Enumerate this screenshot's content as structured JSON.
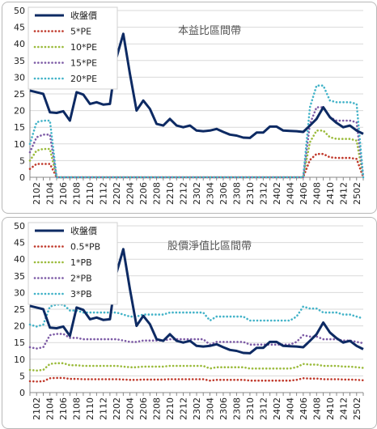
{
  "colors": {
    "price": "#0d2a63",
    "s1": "#c0392b",
    "s2": "#9bbb3c",
    "s3": "#7d5ba6",
    "s4": "#43b3c8",
    "grid": "#d9d9d9"
  },
  "chart_data": [
    {
      "type": "line",
      "title": "本益比區間帶",
      "ylim": [
        0,
        50
      ],
      "yticks": [
        0,
        5,
        10,
        15,
        20,
        25,
        30,
        35,
        40,
        45,
        50
      ],
      "xtick_labels": [
        "2102",
        "2104",
        "2106",
        "2108",
        "2110",
        "2112",
        "2202",
        "2204",
        "2206",
        "2208",
        "2210",
        "2212",
        "2302",
        "2304",
        "2306",
        "2308",
        "2310",
        "2312",
        "2402",
        "2404",
        "2406",
        "2408",
        "2410",
        "2412",
        "2502"
      ],
      "x": [
        "2101",
        "2102",
        "2103",
        "2104",
        "2105",
        "2106",
        "2107",
        "2108",
        "2109",
        "2110",
        "2111",
        "2112",
        "2201",
        "2202",
        "2203",
        "2204",
        "2205",
        "2206",
        "2207",
        "2208",
        "2209",
        "2210",
        "2211",
        "2212",
        "2301",
        "2302",
        "2303",
        "2304",
        "2305",
        "2306",
        "2307",
        "2308",
        "2309",
        "2310",
        "2311",
        "2312",
        "2401",
        "2402",
        "2403",
        "2404",
        "2405",
        "2406",
        "2407",
        "2408",
        "2409",
        "2410",
        "2411",
        "2412",
        "2501",
        "2502",
        "2503"
      ],
      "series": [
        {
          "name": "收盤價",
          "values": [
            26,
            25.5,
            25,
            19.5,
            19.3,
            19.8,
            17,
            25.5,
            24.8,
            22,
            22.5,
            21.8,
            22,
            36,
            43,
            31,
            20,
            23,
            20.5,
            16,
            15.5,
            17.5,
            15.5,
            15,
            15.5,
            14,
            13.8,
            14,
            14.5,
            13.6,
            12.8,
            12.5,
            11.9,
            11.8,
            13.4,
            13.4,
            15.2,
            15.2,
            14,
            13.9,
            13.8,
            13.6,
            15.5,
            17.5,
            21,
            18,
            16.3,
            15,
            15.5,
            14,
            13
          ]
        },
        {
          "name": "5*PE",
          "values": [
            2.5,
            4,
            4,
            4,
            0,
            0,
            0,
            0,
            0,
            0,
            0,
            0,
            0,
            0,
            0,
            0,
            0,
            0,
            0,
            0,
            0,
            0,
            0,
            0,
            0,
            0,
            0,
            0,
            0,
            0,
            0,
            0,
            0,
            0,
            0,
            0,
            0,
            0,
            0,
            0,
            0,
            0,
            5.2,
            7,
            7,
            6,
            5.8,
            5.8,
            5.8,
            5.5,
            0
          ]
        },
        {
          "name": "10*PE",
          "values": [
            5,
            8,
            8.5,
            8.5,
            0,
            0,
            0,
            0,
            0,
            0,
            0,
            0,
            0,
            0,
            0,
            0,
            0,
            0,
            0,
            0,
            0,
            0,
            0,
            0,
            0,
            0,
            0,
            0,
            0,
            0,
            0,
            0,
            0,
            0,
            0,
            0,
            0,
            0,
            0,
            0,
            0,
            0,
            10.5,
            14,
            14,
            12,
            11.5,
            11.5,
            11.5,
            11,
            0
          ]
        },
        {
          "name": "15*PE",
          "values": [
            7.5,
            12,
            12.8,
            12.8,
            0,
            0,
            0,
            0,
            0,
            0,
            0,
            0,
            0,
            0,
            0,
            0,
            0,
            0,
            0,
            0,
            0,
            0,
            0,
            0,
            0,
            0,
            0,
            0,
            0,
            0,
            0,
            0,
            0,
            0,
            0,
            0,
            0,
            0,
            0,
            0,
            0,
            0,
            16,
            21,
            21,
            18,
            17,
            17,
            17,
            16.5,
            0
          ]
        },
        {
          "name": "20*PE",
          "values": [
            10,
            16.5,
            17,
            17,
            0,
            0,
            0,
            0,
            0,
            0,
            0,
            0,
            0,
            0,
            0,
            0,
            0,
            0,
            0,
            0,
            0,
            0,
            0,
            0,
            0,
            0,
            0,
            0,
            0,
            0,
            0,
            0,
            0,
            0,
            0,
            0,
            0,
            0,
            0,
            0,
            0,
            0,
            21,
            27.5,
            27.5,
            23,
            22.5,
            22.5,
            22.5,
            22,
            0
          ]
        }
      ],
      "legend": "top-left"
    },
    {
      "type": "line",
      "title": "股價淨值比區間帶",
      "ylim": [
        0,
        50
      ],
      "yticks": [
        0,
        5,
        10,
        15,
        20,
        25,
        30,
        35,
        40,
        45,
        50
      ],
      "xtick_labels": [
        "2102",
        "2104",
        "2106",
        "2108",
        "2110",
        "2112",
        "2202",
        "2204",
        "2206",
        "2208",
        "2210",
        "2212",
        "2302",
        "2304",
        "2306",
        "2308",
        "2310",
        "2312",
        "2402",
        "2404",
        "2406",
        "2408",
        "2410",
        "2412",
        "2502"
      ],
      "x": [
        "2101",
        "2102",
        "2103",
        "2104",
        "2105",
        "2106",
        "2107",
        "2108",
        "2109",
        "2110",
        "2111",
        "2112",
        "2201",
        "2202",
        "2203",
        "2204",
        "2205",
        "2206",
        "2207",
        "2208",
        "2209",
        "2210",
        "2211",
        "2212",
        "2301",
        "2302",
        "2303",
        "2304",
        "2305",
        "2306",
        "2307",
        "2308",
        "2309",
        "2310",
        "2311",
        "2312",
        "2401",
        "2402",
        "2403",
        "2404",
        "2405",
        "2406",
        "2407",
        "2408",
        "2409",
        "2410",
        "2411",
        "2412",
        "2501",
        "2502",
        "2503"
      ],
      "series": [
        {
          "name": "收盤價",
          "values": [
            26,
            25.5,
            25,
            19.5,
            19.3,
            19.8,
            17,
            25.5,
            24.8,
            22,
            22.5,
            21.8,
            22,
            36,
            43,
            31,
            20,
            23,
            20.5,
            16,
            15.5,
            17.5,
            15.5,
            15,
            15.5,
            14,
            13.8,
            14,
            14.5,
            13.6,
            12.8,
            12.5,
            11.9,
            11.8,
            13.4,
            13.4,
            15.2,
            15.2,
            14,
            13.9,
            13.8,
            13.6,
            15.5,
            17.5,
            21,
            18,
            16.3,
            15,
            15.5,
            14,
            13
          ]
        },
        {
          "name": "0.5*PB",
          "values": [
            3.4,
            3.3,
            3.4,
            4.3,
            4.4,
            4.4,
            4.1,
            4.1,
            4.0,
            4.0,
            4.0,
            4.0,
            4.0,
            4.0,
            3.9,
            3.8,
            3.8,
            3.9,
            3.9,
            3.9,
            3.9,
            4.0,
            4.0,
            4.0,
            4.0,
            4.0,
            4.0,
            3.6,
            3.8,
            3.8,
            3.8,
            3.8,
            3.8,
            3.6,
            3.6,
            3.6,
            3.6,
            3.6,
            3.6,
            3.6,
            3.8,
            4.3,
            4.2,
            4.2,
            4.0,
            4.0,
            4.0,
            3.9,
            3.9,
            3.8,
            3.7
          ]
        },
        {
          "name": "1*PB",
          "values": [
            6.8,
            6.6,
            6.8,
            8.6,
            8.8,
            8.8,
            8.2,
            8.2,
            8.0,
            8.0,
            8.0,
            8.0,
            8.0,
            8.0,
            7.8,
            7.6,
            7.6,
            7.8,
            7.8,
            7.8,
            7.8,
            8.0,
            8.0,
            8.0,
            8.0,
            8.0,
            8.0,
            7.2,
            7.6,
            7.6,
            7.6,
            7.6,
            7.6,
            7.2,
            7.2,
            7.2,
            7.2,
            7.2,
            7.2,
            7.2,
            7.6,
            8.6,
            8.4,
            8.4,
            8.0,
            8.0,
            8.0,
            7.8,
            7.8,
            7.6,
            7.4
          ]
        },
        {
          "name": "2*PB",
          "values": [
            13.6,
            13.2,
            13.6,
            17.2,
            17.6,
            17.6,
            16.4,
            16.4,
            16.0,
            16.0,
            16.0,
            16.0,
            16.0,
            16.0,
            15.6,
            15.2,
            15.2,
            15.6,
            15.6,
            15.6,
            15.6,
            16.0,
            16.0,
            16.0,
            16.0,
            16.0,
            16.0,
            14.4,
            15.2,
            15.2,
            15.2,
            15.2,
            15.2,
            14.4,
            14.4,
            14.4,
            14.4,
            14.4,
            14.4,
            14.4,
            15.2,
            17.2,
            16.8,
            16.8,
            16.0,
            16.0,
            16.0,
            15.6,
            15.6,
            15.2,
            14.8
          ]
        },
        {
          "name": "3*PB",
          "values": [
            20.4,
            19.8,
            20.4,
            25.8,
            26.4,
            26.4,
            24.6,
            24.6,
            24.0,
            24.0,
            24.0,
            24.0,
            24.0,
            24.0,
            23.4,
            22.8,
            22.8,
            23.4,
            23.4,
            23.4,
            23.4,
            24.0,
            24.0,
            24.0,
            24.0,
            24.0,
            24.0,
            21.6,
            22.8,
            22.8,
            22.8,
            22.8,
            22.8,
            21.6,
            21.6,
            21.6,
            21.6,
            21.6,
            21.6,
            21.6,
            22.8,
            25.8,
            25.2,
            25.2,
            24.0,
            24.0,
            24.0,
            23.4,
            23.4,
            22.8,
            22.2
          ]
        }
      ],
      "legend": "top-left"
    }
  ]
}
